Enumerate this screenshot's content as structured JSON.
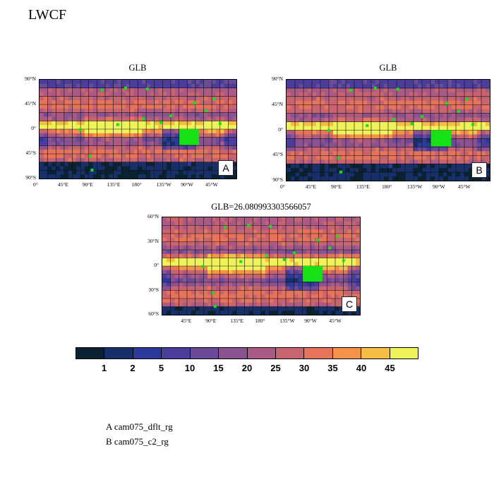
{
  "title": "LWCF",
  "chart_data": [
    {
      "type": "heatmap",
      "panel": "A",
      "title": "GLB",
      "y_ticks": [
        "90°N",
        "45°N",
        "0°",
        "45°S",
        "90°S"
      ],
      "x_ticks": [
        "0°",
        "45°E",
        "90°E",
        "135°E",
        "180°",
        "135°W",
        "90°W",
        "45°W"
      ]
    },
    {
      "type": "heatmap",
      "panel": "B",
      "title": "GLB",
      "y_ticks": [
        "90°N",
        "45°N",
        "0°",
        "45°S",
        "90°S"
      ],
      "x_ticks": [
        "0°",
        "45°E",
        "90°E",
        "135°E",
        "180°",
        "135°W",
        "90°W",
        "45°W"
      ]
    },
    {
      "type": "heatmap",
      "panel": "C",
      "title": "GLB=26.080993303566057",
      "y_ticks": [
        "60°N",
        "30°N",
        "0°",
        "30°S",
        "60°S"
      ],
      "x_ticks": [
        "45°E",
        "90°E",
        "135°E",
        "180°",
        "135°W",
        "90°W",
        "45°W"
      ]
    }
  ],
  "colorbar": {
    "labels": [
      "1",
      "2",
      "5",
      "10",
      "15",
      "20",
      "25",
      "30",
      "35",
      "40",
      "45"
    ],
    "colors": [
      "#0b2233",
      "#17306a",
      "#2e3a9a",
      "#4a3d9c",
      "#6b4a98",
      "#8a5290",
      "#aa5a84",
      "#c8646f",
      "#e6745a",
      "#f4924a",
      "#f6bd45",
      "#eef35a"
    ]
  },
  "legend": [
    "A  cam075_dflt_rg",
    "B  cam075_c2_rg"
  ],
  "highlight_color": "#16e016"
}
